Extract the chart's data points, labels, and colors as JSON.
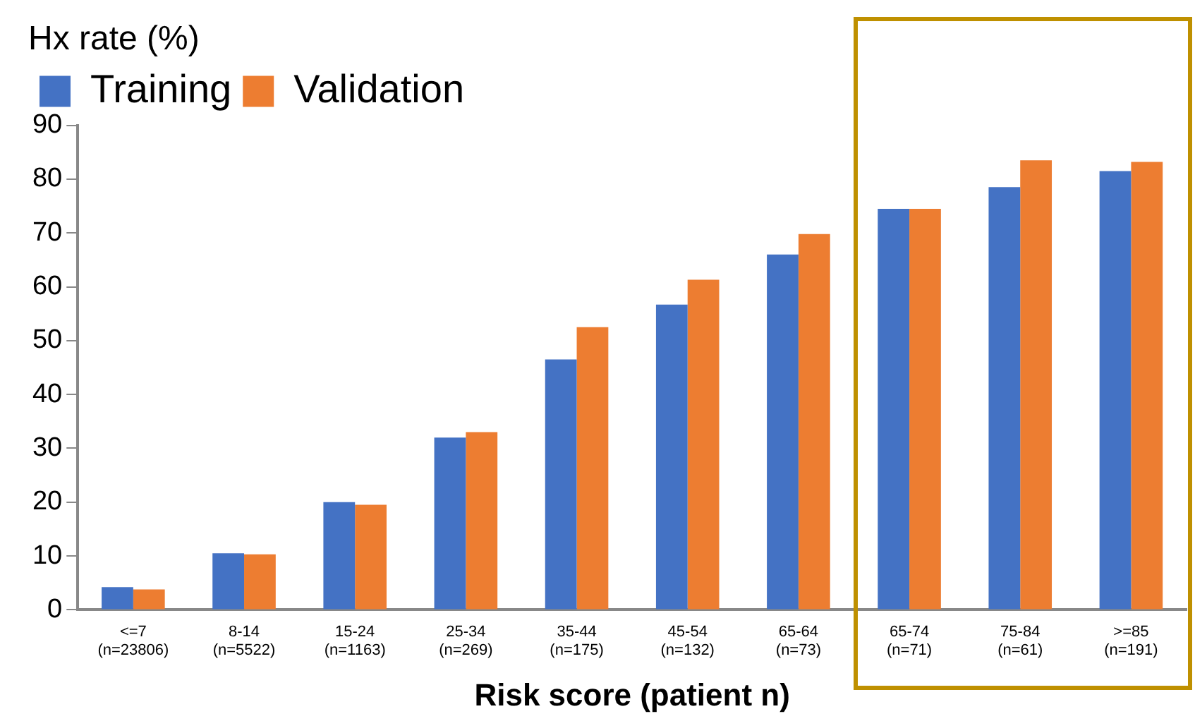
{
  "chart_data": {
    "type": "bar",
    "xlabel": "Risk score (patient n)",
    "ylabel": "Hx rate (%)",
    "categories": [
      "<=7\n(n=23806)",
      "8-14\n(n=5522)",
      "15-24\n(n=1163)",
      "25-34\n(n=269)",
      "35-44\n(n=175)",
      "45-54\n(n=132)",
      "65-64\n(n=73)",
      "65-74\n(n=71)",
      "75-84\n(n=61)",
      ">=85\n(n=191)"
    ],
    "series": [
      {
        "name": "Training",
        "color": "#4472c4",
        "values": [
          4.2,
          10.5,
          20,
          32,
          46.5,
          56.7,
          66,
          74.5,
          78.5,
          81.5
        ]
      },
      {
        "name": "Validation",
        "color": "#ed7d31",
        "values": [
          3.8,
          10.3,
          19.5,
          33,
          52.5,
          61.3,
          69.8,
          74.5,
          83.5,
          83.2
        ]
      }
    ],
    "ylim": [
      0,
      90
    ],
    "yticks": [
      0,
      10,
      20,
      30,
      40,
      50,
      60,
      70,
      80,
      90
    ],
    "grid": false,
    "legend": "top left"
  }
}
